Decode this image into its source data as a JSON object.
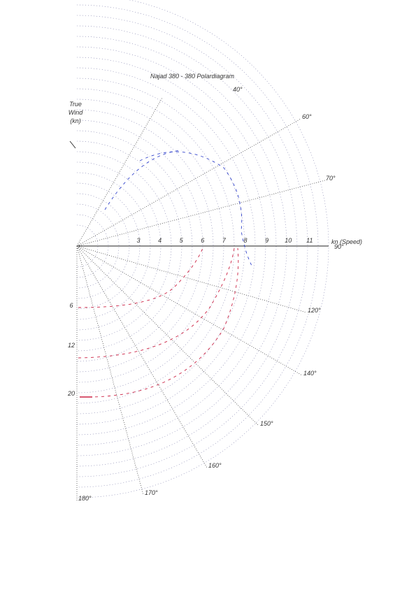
{
  "title": "Najad 380 - 380 Polardiagram",
  "wind_legend": [
    "True",
    "Wind",
    "(kn)"
  ],
  "speed_label": "kn (Speed)",
  "speed_ticks": [
    "3",
    "4",
    "5",
    "6",
    "7",
    "8",
    "9",
    "10",
    "11"
  ],
  "angle_labels": [
    "40°",
    "60°",
    "70°",
    "90°",
    "120°",
    "140°",
    "150°",
    "160°",
    "170°",
    "180°"
  ],
  "wind_speeds": [
    "6",
    "12",
    "20"
  ]
}
